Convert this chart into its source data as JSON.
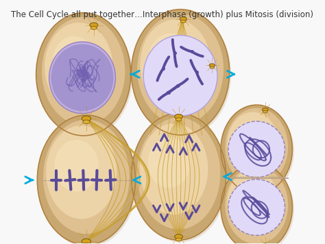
{
  "title": "The Cell Cycle all put together…Interphase (growth) plus Mitosis (division)",
  "title_fontsize": 8.5,
  "bg_color": "#f8f8f8",
  "cell_fill": "#d4b896",
  "cell_edge": "#b8966a",
  "cell_inner_fill": "#e8d0a8",
  "nucleus_purple_fill": "#9080c0",
  "nucleus_purple_edge": "#6050a0",
  "nucleus_light_fill": "#d8d0f0",
  "nucleus_light_edge": "#9080c0",
  "spindle_color": "#c8a030",
  "chrom_color": "#5a4a9a",
  "arrow_color": "#00aadd",
  "centriole_fill": "#d4a020",
  "centriole_edge": "#906800"
}
